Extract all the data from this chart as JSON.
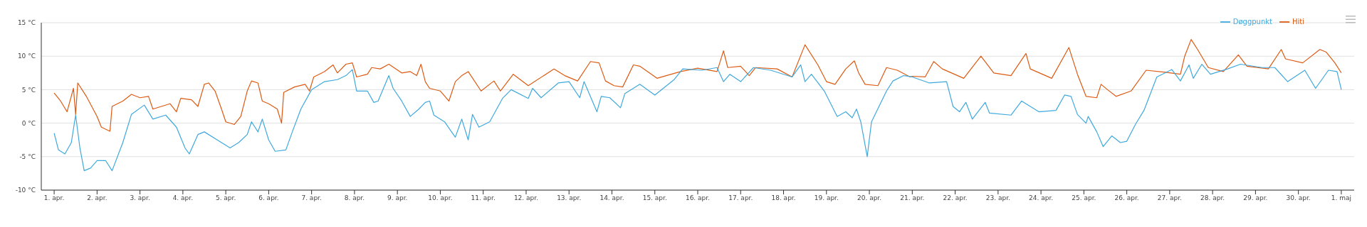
{
  "chart_data": {
    "type": "line",
    "ylim": [
      -10,
      15
    ],
    "yticks": [
      {
        "value": -10,
        "label": "-10 °C"
      },
      {
        "value": -5,
        "label": "-5 °C"
      },
      {
        "value": 0,
        "label": "0 °C"
      },
      {
        "value": 5,
        "label": "5 °C"
      },
      {
        "value": 10,
        "label": "10 °C"
      },
      {
        "value": 15,
        "label": "15 °C"
      }
    ],
    "xlim": [
      "--03-31T16:48",
      "--05-01T07:12"
    ],
    "xticks": [
      {
        "value": "--04-01",
        "label": "1. apr."
      },
      {
        "value": "--04-02",
        "label": "2. apr."
      },
      {
        "value": "--04-03",
        "label": "3. apr."
      },
      {
        "value": "--04-04",
        "label": "4. apr."
      },
      {
        "value": "--04-05",
        "label": "5. apr."
      },
      {
        "value": "--04-06",
        "label": "6. apr."
      },
      {
        "value": "--04-07",
        "label": "7. apr."
      },
      {
        "value": "--04-08",
        "label": "8. apr."
      },
      {
        "value": "--04-09",
        "label": "9. apr."
      },
      {
        "value": "--04-10",
        "label": "10. apr."
      },
      {
        "value": "--04-11",
        "label": "11. apr."
      },
      {
        "value": "--04-12",
        "label": "12. apr."
      },
      {
        "value": "--04-13",
        "label": "13. apr."
      },
      {
        "value": "--04-14",
        "label": "14. apr."
      },
      {
        "value": "--04-15",
        "label": "15. apr."
      },
      {
        "value": "--04-16",
        "label": "16. apr."
      },
      {
        "value": "--04-17",
        "label": "17. apr."
      },
      {
        "value": "--04-18",
        "label": "18. apr."
      },
      {
        "value": "--04-19",
        "label": "19. apr."
      },
      {
        "value": "--04-20",
        "label": "20. apr."
      },
      {
        "value": "--04-21",
        "label": "21. apr."
      },
      {
        "value": "--04-22",
        "label": "22. apr."
      },
      {
        "value": "--04-23",
        "label": "23. apr."
      },
      {
        "value": "--04-24",
        "label": "24. apr."
      },
      {
        "value": "--04-25",
        "label": "25. apr."
      },
      {
        "value": "--04-26",
        "label": "26. apr."
      },
      {
        "value": "--04-27",
        "label": "27. apr."
      },
      {
        "value": "--04-28",
        "label": "28. apr."
      },
      {
        "value": "--04-29",
        "label": "29. apr."
      },
      {
        "value": "--04-30",
        "label": "30. apr."
      },
      {
        "value": "--05-01",
        "label": "1. maj"
      }
    ],
    "grid": "y",
    "legend": "top right",
    "marker": "none",
    "line_style": "solid",
    "series": [
      {
        "name": "Hiti",
        "color": "#dd5a12",
        "x": [
          "--04-01T00:00",
          "--04-01T03:36",
          "--04-01T07:12",
          "--04-01T10:48",
          "--04-01T12:00",
          "--04-01T13:12",
          "--04-01T18:00",
          "--04-02T00:00",
          "--04-02T02:24",
          "--04-02T07:12",
          "--04-02T08:24",
          "--04-02T14:24",
          "--04-02T19:12",
          "--04-03T00:00",
          "--04-03T04:48",
          "--04-03T07:12",
          "--04-03T12:00",
          "--04-03T16:48",
          "--04-03T20:24",
          "--04-03T22:48",
          "--04-04T04:48",
          "--04-04T08:24",
          "--04-04T12:00",
          "--04-04T14:24",
          "--04-04T18:00",
          "--04-04T21:36",
          "--04-05T00:00",
          "--04-05T04:48",
          "--04-05T08:24",
          "--04-05T12:00",
          "--04-05T14:24",
          "--04-05T18:00",
          "--04-05T20:24",
          "--04-06T00:00",
          "--04-06T04:48",
          "--04-06T07:12",
          "--04-06T08:24",
          "--04-06T14:24",
          "--04-06T20:24",
          "--04-06T22:48",
          "--04-07T01:12",
          "--04-07T07:12",
          "--04-07T12:00",
          "--04-07T14:24",
          "--04-07T19:12",
          "--04-07T22:48",
          "--04-08T01:12",
          "--04-08T07:12",
          "--04-08T09:36",
          "--04-08T14:24",
          "--04-08T19:12",
          "--04-09T02:24",
          "--04-09T07:12",
          "--04-09T10:48",
          "--04-09T13:12",
          "--04-09T15:36",
          "--04-09T18:00",
          "--04-10T00:00",
          "--04-10T04:48",
          "--04-10T08:24",
          "--04-10T12:00",
          "--04-10T15:36",
          "--04-10T22:48",
          "--04-11T06:00",
          "--04-11T09:36",
          "--04-11T16:48",
          "--04-12T01:12",
          "--04-12T15:36",
          "--04-12T21:36",
          "--04-13T04:48",
          "--04-13T12:00",
          "--04-13T16:48",
          "--04-13T20:24",
          "--04-14T01:12",
          "--04-14T06:00",
          "--04-14T12:00",
          "--04-14T15:36",
          "--04-15T01:12",
          "--04-15T14:24",
          "--04-16T00:00",
          "--04-16T10:48",
          "--04-16T14:24",
          "--04-16T16:48",
          "--04-17T00:00",
          "--04-17T04:48",
          "--04-17T08:24",
          "--04-17T20:24",
          "--04-18T04:48",
          "--04-18T12:00",
          "--04-18T19:12",
          "--04-19T00:00",
          "--04-19T04:48",
          "--04-19T10:48",
          "--04-19T15:36",
          "--04-19T18:00",
          "--04-19T21:36",
          "--04-20T04:48",
          "--04-20T09:36",
          "--04-20T15:36",
          "--04-20T22:48",
          "--04-21T00:00",
          "--04-21T07:12",
          "--04-21T12:00",
          "--04-21T16:48",
          "--04-22T04:48",
          "--04-22T14:24",
          "--04-22T21:36",
          "--04-23T07:12",
          "--04-23T15:36",
          "--04-23T18:00",
          "--04-24T06:00",
          "--04-24T15:36",
          "--04-24T20:24",
          "--04-25T01:12",
          "--04-25T07:12",
          "--04-25T09:36",
          "--04-25T13:12",
          "--04-25T18:00",
          "--04-26T02:24",
          "--04-26T10:48",
          "--04-26T21:36",
          "--04-27T06:00",
          "--04-27T08:24",
          "--04-27T12:00",
          "--04-27T15:36",
          "--04-27T21:36",
          "--04-28T06:00",
          "--04-28T14:24",
          "--04-28T19:12",
          "--04-29T07:12",
          "--04-29T14:24",
          "--04-29T16:48",
          "--04-30T02:24",
          "--04-30T12:00",
          "--04-30T15:36",
          "--04-30T20:24",
          "--05-01T00:00"
        ],
        "values": [
          4.5,
          3.3,
          1.7,
          5.2,
          1.3,
          6.0,
          4.0,
          1.0,
          -0.6,
          -1.2,
          2.5,
          3.3,
          4.3,
          3.8,
          4.0,
          2.1,
          2.5,
          2.9,
          1.7,
          3.7,
          3.5,
          2.5,
          5.8,
          6.0,
          4.8,
          2.1,
          0.2,
          -0.2,
          1.0,
          4.8,
          6.3,
          6.0,
          3.3,
          2.9,
          2.1,
          0,
          4.6,
          5.4,
          5.8,
          4.8,
          6.9,
          7.7,
          8.7,
          7.5,
          8.8,
          9.0,
          6.9,
          7.3,
          8.3,
          8.1,
          8.8,
          7.5,
          7.7,
          7.1,
          8.8,
          6.2,
          5.2,
          4.8,
          3.3,
          6.2,
          7.1,
          7.7,
          4.8,
          6.3,
          4.8,
          7.3,
          5.6,
          8.1,
          7.1,
          6.3,
          9.2,
          9.0,
          6.3,
          5.6,
          5.4,
          8.7,
          8.5,
          6.7,
          7.7,
          8.2,
          7.7,
          10.8,
          8.3,
          8.5,
          7.1,
          8.3,
          8.1,
          6.9,
          11.7,
          8.7,
          6.2,
          5.8,
          8.1,
          9.3,
          7.5,
          5.8,
          5.6,
          8.3,
          7.9,
          6.9,
          7.0,
          6.9,
          9.2,
          8.1,
          6.7,
          10.0,
          7.5,
          7.1,
          10.4,
          8.1,
          6.7,
          11.3,
          7.3,
          4.0,
          3.8,
          5.8,
          5.0,
          4.0,
          4.8,
          7.9,
          7.6,
          7.3,
          10.0,
          12.5,
          11.0,
          8.3,
          7.7,
          10.2,
          8.5,
          8.1,
          11.0,
          9.6,
          9.0,
          11.0,
          10.6,
          9.0,
          7.5
        ]
      },
      {
        "name": "Døggpunkt",
        "color": "#3fa9dd",
        "x": [
          "--04-01T00:00",
          "--04-01T02:24",
          "--04-01T06:00",
          "--04-01T09:36",
          "--04-01T12:00",
          "--04-01T14:24",
          "--04-01T16:48",
          "--04-01T20:24",
          "--04-02T00:00",
          "--04-02T04:48",
          "--04-02T08:24",
          "--04-02T14:24",
          "--04-02T19:12",
          "--04-03T02:24",
          "--04-03T07:12",
          "--04-03T14:24",
          "--04-03T20:24",
          "--04-04T01:12",
          "--04-04T03:36",
          "--04-04T08:24",
          "--04-04T12:00",
          "--04-04T19:12",
          "--04-05T02:24",
          "--04-05T07:12",
          "--04-05T12:00",
          "--04-05T14:24",
          "--04-05T18:00",
          "--04-05T20:24",
          "--04-06T00:00",
          "--04-06T03:36",
          "--04-06T09:36",
          "--04-06T13:12",
          "--04-06T18:00",
          "--04-07T00:00",
          "--04-07T07:12",
          "--04-07T14:24",
          "--04-07T19:12",
          "--04-07T22:48",
          "--04-08T01:12",
          "--04-08T07:12",
          "--04-08T10:48",
          "--04-08T13:12",
          "--04-08T19:12",
          "--04-08T21:36",
          "--04-09T02:24",
          "--04-09T07:12",
          "--04-09T12:00",
          "--04-09T15:36",
          "--04-09T18:00",
          "--04-09T20:24",
          "--04-10T02:24",
          "--04-10T06:00",
          "--04-10T08:24",
          "--04-10T12:00",
          "--04-10T15:36",
          "--04-10T18:00",
          "--04-10T21:36",
          "--04-11T03:36",
          "--04-11T10:48",
          "--04-11T15:36",
          "--04-12T01:12",
          "--04-12T03:36",
          "--04-12T08:24",
          "--04-12T18:00",
          "--04-13T00:00",
          "--04-13T06:00",
          "--04-13T08:24",
          "--04-13T15:36",
          "--04-13T18:00",
          "--04-13T22:48",
          "--04-14T04:48",
          "--04-14T07:12",
          "--04-14T15:36",
          "--04-15T00:00",
          "--04-15T10:48",
          "--04-15T15:36",
          "--04-16T02:24",
          "--04-16T10:48",
          "--04-16T14:24",
          "--04-16T18:00",
          "--04-17T00:00",
          "--04-17T07:12",
          "--04-17T16:48",
          "--04-18T04:48",
          "--04-18T09:36",
          "--04-18T12:00",
          "--04-18T15:36",
          "--04-18T22:48",
          "--04-19T06:00",
          "--04-19T10:48",
          "--04-19T14:24",
          "--04-19T16:48",
          "--04-19T19:12",
          "--04-19T22:48",
          "--04-20T01:12",
          "--04-20T09:36",
          "--04-20T13:12",
          "--04-20T19:12",
          "--04-21T00:00",
          "--04-21T09:36",
          "--04-21T19:12",
          "--04-21T22:48",
          "--04-22T02:24",
          "--04-22T06:00",
          "--04-22T09:36",
          "--04-22T16:48",
          "--04-22T19:12",
          "--04-23T07:12",
          "--04-23T13:12",
          "--04-23T22:48",
          "--04-24T08:24",
          "--04-24T13:12",
          "--04-24T16:48",
          "--04-24T20:24",
          "--04-25T01:12",
          "--04-25T02:24",
          "--04-25T07:12",
          "--04-25T10:48",
          "--04-25T15:36",
          "--04-25T20:24",
          "--04-26T00:00",
          "--04-26T04:48",
          "--04-26T09:36",
          "--04-26T16:48",
          "--04-27T01:12",
          "--04-27T06:00",
          "--04-27T10:48",
          "--04-27T13:12",
          "--04-27T18:00",
          "--04-27T22:48",
          "--04-28T08:24",
          "--04-28T15:36",
          "--04-29T03:36",
          "--04-29T10:48",
          "--04-29T18:00",
          "--04-30T03:36",
          "--04-30T09:36",
          "--04-30T16:48",
          "--04-30T21:36",
          "--05-01T00:00"
        ],
        "values": [
          -1.5,
          -4.0,
          -4.6,
          -2.9,
          1.2,
          -3.7,
          -7.1,
          -6.7,
          -5.6,
          -5.6,
          -7.1,
          -2.9,
          1.3,
          2.7,
          0.6,
          1.2,
          -0.6,
          -3.7,
          -4.6,
          -1.7,
          -1.3,
          -2.5,
          -3.7,
          -2.9,
          -1.7,
          0.2,
          -1.3,
          0.6,
          -2.5,
          -4.2,
          -4.0,
          -1.3,
          2.1,
          5.0,
          6.2,
          6.5,
          7.1,
          8.0,
          4.8,
          4.8,
          3.1,
          3.3,
          7.1,
          5.2,
          3.3,
          1.0,
          2.1,
          3.1,
          3.3,
          1.2,
          0.2,
          -1.2,
          -2.1,
          0.6,
          -2.5,
          1.3,
          -0.6,
          0.2,
          3.7,
          5.0,
          3.7,
          5.2,
          3.8,
          6.0,
          6.2,
          3.8,
          6.2,
          1.7,
          4.0,
          3.8,
          2.3,
          4.4,
          5.8,
          4.2,
          6.5,
          8.1,
          7.9,
          8.3,
          6.2,
          7.3,
          6.2,
          8.3,
          7.9,
          6.9,
          8.7,
          6.2,
          7.3,
          4.8,
          1.0,
          1.7,
          0.8,
          2.1,
          0.2,
          -5.0,
          0.2,
          4.8,
          6.3,
          7.1,
          6.9,
          6.0,
          6.2,
          2.5,
          1.7,
          3.1,
          0.6,
          3.1,
          1.5,
          1.2,
          3.3,
          1.7,
          1.9,
          4.2,
          4.0,
          1.3,
          0,
          1.0,
          -1.3,
          -3.5,
          -1.9,
          -2.9,
          -2.7,
          -0.2,
          1.9,
          6.9,
          8.0,
          6.3,
          8.7,
          6.7,
          8.8,
          7.3,
          8.1,
          8.8,
          8.3,
          8.3,
          6.2,
          7.9,
          5.2,
          7.9,
          7.7,
          5.0
        ]
      }
    ]
  }
}
